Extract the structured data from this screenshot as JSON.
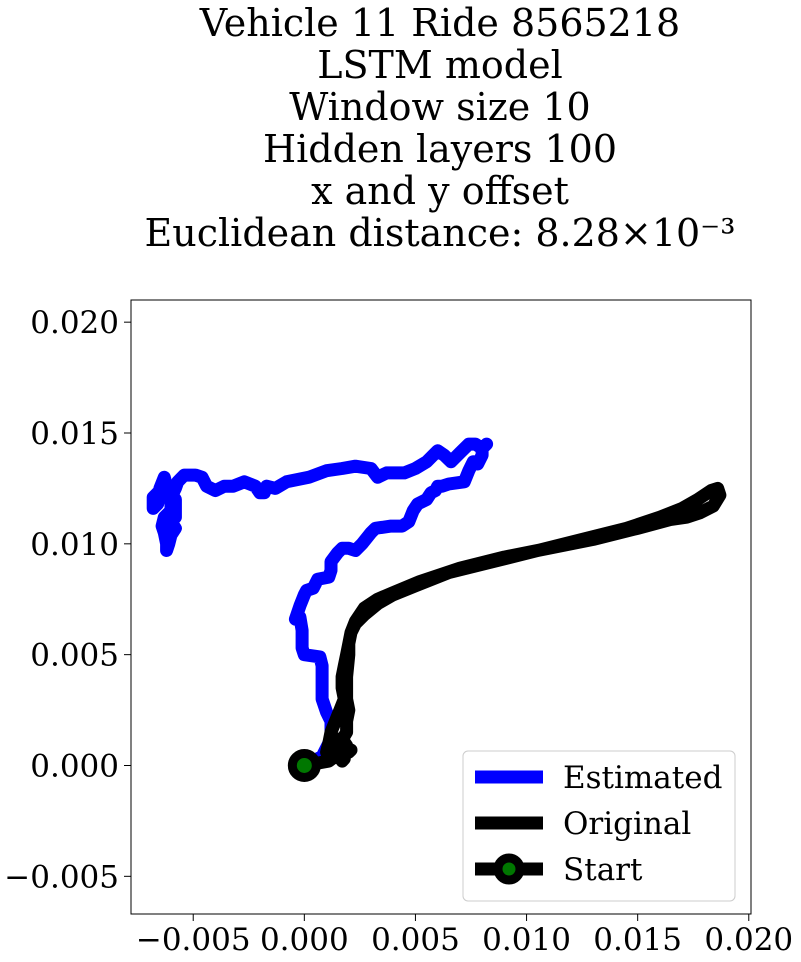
{
  "chart_data": {
    "type": "line",
    "title_lines": [
      "Vehicle 11 Ride 8565218",
      "LSTM model",
      "Window size 10",
      "Hidden layers 100",
      "x and y offset",
      "Euclidean distance: 8.28×10⁻³"
    ],
    "xlabel": "",
    "ylabel": "",
    "xlim": [
      -0.0078,
      0.0201
    ],
    "ylim": [
      -0.0067,
      0.021
    ],
    "xticks": [
      -0.005,
      0.0,
      0.005,
      0.01,
      0.015,
      0.02
    ],
    "xtick_labels": [
      "−0.005",
      "0.000",
      "0.005",
      "0.010",
      "0.015",
      "0.020"
    ],
    "yticks": [
      -0.005,
      0.0,
      0.005,
      0.01,
      0.015,
      0.02
    ],
    "ytick_labels": [
      "−0.005",
      "0.000",
      "0.005",
      "0.010",
      "0.015",
      "0.020"
    ],
    "grid": false,
    "legend_position": "lower-right",
    "series": [
      {
        "name": "Estimated",
        "color": "#0000ff",
        "x": [
          0.0,
          0.0008,
          0.0012,
          0.0012,
          0.001,
          0.0008,
          0.0008,
          0.0008,
          0.0007,
          0.0,
          -0.0001,
          -0.0001,
          -0.0002,
          -0.0004,
          -0.0002,
          0.0,
          0.0001,
          0.0004,
          0.0006,
          0.0011,
          0.0012,
          0.0012,
          0.0015,
          0.0017,
          0.002,
          0.0023,
          0.0026,
          0.003,
          0.0032,
          0.0039,
          0.0044,
          0.0047,
          0.0049,
          0.0051,
          0.0055,
          0.0057,
          0.0059,
          0.006,
          0.0062,
          0.0065,
          0.0072,
          0.0074,
          0.0075,
          0.0076,
          0.0078,
          0.008,
          0.008,
          0.0082,
          0.008,
          0.0077,
          0.0074,
          0.007,
          0.0066,
          0.0063,
          0.006,
          0.0058,
          0.0055,
          0.005,
          0.0045,
          0.0037,
          0.0033,
          0.003,
          0.0023,
          0.0017,
          0.001,
          0.0002,
          -0.0008,
          -0.0013,
          -0.0017,
          -0.0018,
          -0.002,
          -0.0022,
          -0.0027,
          -0.0032,
          -0.0036,
          -0.004,
          -0.0044,
          -0.0046,
          -0.0049,
          -0.0052,
          -0.0054,
          -0.0057,
          -0.0058,
          -0.0059,
          -0.006,
          -0.006,
          -0.0063,
          -0.0064,
          -0.0063,
          -0.0062,
          -0.0062,
          -0.0061,
          -0.006,
          -0.0058,
          -0.006,
          -0.0058,
          -0.0058,
          -0.0058,
          -0.0062,
          -0.0063,
          -0.0063,
          -0.0065,
          -0.0065,
          -0.0066,
          -0.0068,
          -0.0068,
          -0.0065,
          -0.0063
        ],
        "y": [
          0.0,
          0.0004,
          0.0012,
          0.002,
          0.0024,
          0.003,
          0.0038,
          0.0045,
          0.0049,
          0.005,
          0.0053,
          0.0061,
          0.0067,
          0.0066,
          0.0072,
          0.0077,
          0.0079,
          0.008,
          0.0084,
          0.0085,
          0.0088,
          0.0092,
          0.0096,
          0.0098,
          0.0098,
          0.0097,
          0.01,
          0.0105,
          0.0107,
          0.0108,
          0.0108,
          0.011,
          0.0115,
          0.0118,
          0.012,
          0.0123,
          0.0124,
          0.0126,
          0.0126,
          0.0127,
          0.0128,
          0.0133,
          0.0135,
          0.0137,
          0.0136,
          0.014,
          0.0143,
          0.0145,
          0.0143,
          0.0145,
          0.0145,
          0.0141,
          0.0137,
          0.014,
          0.0142,
          0.014,
          0.0137,
          0.0134,
          0.0132,
          0.0132,
          0.013,
          0.0134,
          0.0135,
          0.0134,
          0.0133,
          0.013,
          0.0128,
          0.0125,
          0.0126,
          0.0123,
          0.0123,
          0.0126,
          0.0128,
          0.0126,
          0.0126,
          0.0124,
          0.0126,
          0.013,
          0.0131,
          0.0131,
          0.0131,
          0.0128,
          0.0125,
          0.0123,
          0.012,
          0.0115,
          0.0112,
          0.0108,
          0.0105,
          0.01,
          0.0097,
          0.01,
          0.0104,
          0.0107,
          0.011,
          0.0112,
          0.0117,
          0.012,
          0.0126,
          0.013,
          0.013,
          0.0125,
          0.0122,
          0.0118,
          0.0116,
          0.0121,
          0.0124,
          0.0129
        ]
      },
      {
        "name": "Original",
        "color": "#000000",
        "x": [
          0.0,
          0.0011,
          0.0015,
          0.0016,
          0.0019,
          0.0019,
          0.002,
          0.0019,
          0.0019,
          0.002,
          0.002,
          0.0021,
          0.0023,
          0.0027,
          0.0033,
          0.004,
          0.005,
          0.0065,
          0.0085,
          0.0105,
          0.0125,
          0.0145,
          0.016,
          0.017,
          0.0177,
          0.0183,
          0.0186,
          0.0187,
          0.0184,
          0.0178,
          0.0172,
          0.0165,
          0.015,
          0.013,
          0.011,
          0.009,
          0.007,
          0.0052,
          0.004,
          0.0033,
          0.0027,
          0.0023,
          0.0021,
          0.002,
          0.0019,
          0.0018,
          0.0017,
          0.0017,
          0.0018,
          0.0016,
          0.0014,
          0.0012,
          0.0011,
          0.001,
          0.0011,
          0.0013,
          0.0015,
          0.0016,
          0.0017,
          0.0018,
          0.0018,
          0.0017,
          0.0017,
          0.0016,
          0.0017,
          0.0019,
          0.002,
          0.0021
        ],
        "y": [
          0.0,
          0.0002,
          0.0005,
          0.001,
          0.0015,
          0.002,
          0.0025,
          0.003,
          0.004,
          0.005,
          0.0055,
          0.006,
          0.0064,
          0.0068,
          0.0073,
          0.0077,
          0.0081,
          0.0087,
          0.0092,
          0.0097,
          0.0102,
          0.0107,
          0.0112,
          0.0116,
          0.012,
          0.0124,
          0.0125,
          0.0122,
          0.0117,
          0.0114,
          0.0112,
          0.0111,
          0.0107,
          0.0102,
          0.0098,
          0.0094,
          0.0089,
          0.0083,
          0.0078,
          0.0075,
          0.0071,
          0.0065,
          0.006,
          0.0055,
          0.005,
          0.0045,
          0.004,
          0.0035,
          0.003,
          0.0025,
          0.002,
          0.0015,
          0.001,
          0.0006,
          0.0003,
          0.0005,
          0.0009,
          0.0012,
          0.001,
          0.0007,
          0.0003,
          0.0002,
          0.0004,
          0.0008,
          0.0012,
          0.0009,
          0.0006,
          0.0007
        ]
      }
    ],
    "start": {
      "name": "Start",
      "x": 0.0,
      "y": 0.0,
      "marker_color": "#007700",
      "marker_edge": "#000000"
    }
  }
}
